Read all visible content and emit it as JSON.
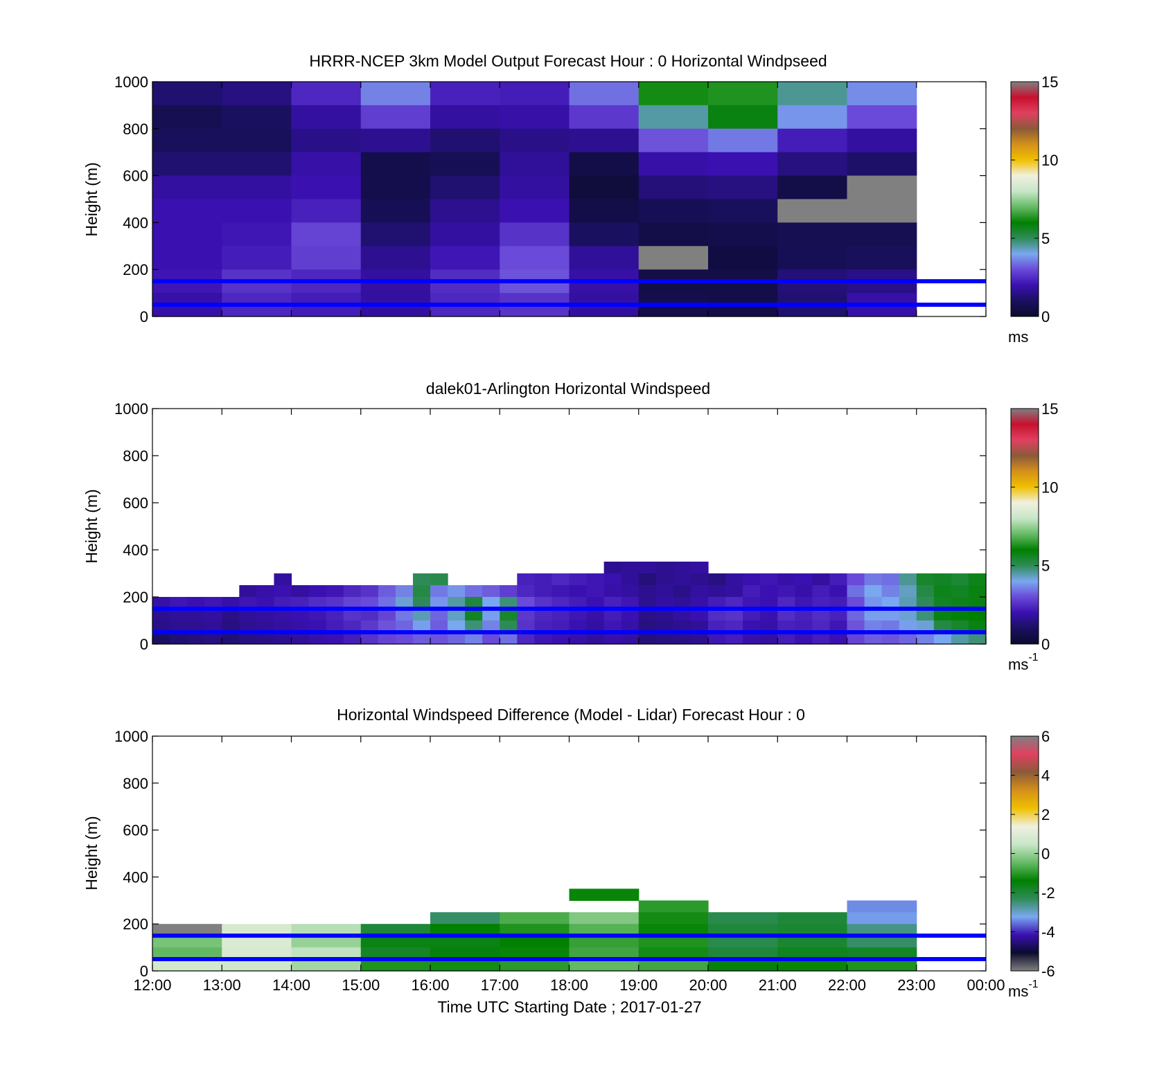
{
  "colors": {
    "speed_scale": [
      "#0b0b2e",
      "#1a1060",
      "#3a10b0",
      "#6a4ad8",
      "#7aa8f0",
      "#2e8b57",
      "#008000",
      "#66bb66",
      "#c8e6c8",
      "#f0f0e0",
      "#f0c000",
      "#d4901a",
      "#8b5a3a",
      "#e04060",
      "#c8102e",
      "#808080"
    ],
    "diff_scale": [
      "#808080",
      "#0b0b2e",
      "#3a10b0",
      "#7aa8f0",
      "#2e8b57",
      "#008000",
      "#66bb66",
      "#c8e6c8",
      "#f0f0e0",
      "#f0c000",
      "#d4901a",
      "#8b5a3a",
      "#e04060",
      "#808080"
    ],
    "reference_lines": "#0000ff"
  },
  "figure": {
    "xaxis": {
      "label": "Time UTC  Starting Date ; 2017-01-27",
      "ticks": [
        "12:00",
        "13:00",
        "14:00",
        "15:00",
        "16:00",
        "17:00",
        "18:00",
        "19:00",
        "20:00",
        "21:00",
        "22:00",
        "23:00",
        "00:00"
      ]
    }
  },
  "chart_data": [
    {
      "type": "heatmap",
      "title": "HRRR-NCEP 3km Model Output   Forecast Hour : 0 Horizontal Windpseed",
      "ylabel": "Height (m)",
      "ylim": [
        0,
        1000
      ],
      "yticks": [
        "0",
        "200",
        "400",
        "600",
        "800",
        "1000"
      ],
      "x_hours": [
        12,
        13,
        14,
        15,
        16,
        17,
        18,
        19,
        20,
        21,
        22
      ],
      "heights": [
        1000,
        900,
        800,
        700,
        600,
        500,
        400,
        300,
        200,
        100
      ],
      "values": [
        [
          1.2,
          1.4,
          2.4,
          3.6,
          2.3,
          2.2,
          3.4,
          6.2,
          6.3,
          4.6,
          3.7
        ],
        [
          0.7,
          1.0,
          1.8,
          2.8,
          1.8,
          1.9,
          2.7,
          4.5,
          5.8,
          3.8,
          3.0
        ],
        [
          0.9,
          0.9,
          1.5,
          1.6,
          1.2,
          1.5,
          1.6,
          3.1,
          3.5,
          2.2,
          1.8
        ],
        [
          1.2,
          1.2,
          1.9,
          0.6,
          0.8,
          1.7,
          0.5,
          1.9,
          2.0,
          1.4,
          1.1
        ],
        [
          1.8,
          1.8,
          2.0,
          0.6,
          1.2,
          1.8,
          0.3,
          1.3,
          1.4,
          0.5,
          15.0
        ],
        [
          2.0,
          2.0,
          2.3,
          0.8,
          1.6,
          2.0,
          0.5,
          0.8,
          0.9,
          15.0,
          15.0
        ],
        [
          2.0,
          2.1,
          2.9,
          1.2,
          1.8,
          2.6,
          1.0,
          0.5,
          0.6,
          0.7,
          0.7
        ],
        [
          2.0,
          2.2,
          2.8,
          1.6,
          2.1,
          3.0,
          1.7,
          15.0,
          0.4,
          0.8,
          0.9
        ],
        [
          2.1,
          2.6,
          2.4,
          1.8,
          2.5,
          3.1,
          1.9,
          0.5,
          0.5,
          1.3,
          1.5
        ],
        [
          1.9,
          2.4,
          2.2,
          1.8,
          2.4,
          2.6,
          1.8,
          0.6,
          0.5,
          1.2,
          1.9
        ]
      ],
      "reference_lines_m": [
        150,
        50
      ],
      "colorbar": {
        "min": 0,
        "max": 15,
        "ticks": [
          "0",
          "5",
          "10",
          "15"
        ],
        "unit": "ms"
      }
    },
    {
      "type": "heatmap",
      "title": "dalek01-Arlington  Horizontal Windspeed",
      "ylabel": "Height (m)",
      "ylim": [
        0,
        1000
      ],
      "yticks": [
        "0",
        "200",
        "400",
        "600",
        "800",
        "1000"
      ],
      "x_hours": [
        12,
        12.25,
        12.5,
        12.75,
        13,
        13.25,
        13.5,
        13.75,
        14,
        14.25,
        14.5,
        14.75,
        15,
        15.25,
        15.5,
        15.75,
        16,
        16.25,
        16.5,
        16.75,
        17,
        17.25,
        17.5,
        17.75,
        18,
        18.25,
        18.5,
        18.75,
        19,
        19.25,
        19.5,
        19.75,
        20,
        20.25,
        20.5,
        20.75,
        21,
        21.25,
        21.5,
        21.75,
        22,
        22.25,
        22.5,
        22.75,
        23,
        23.25,
        23.5,
        23.75
      ],
      "heights": [
        350,
        300,
        250,
        200,
        150,
        100,
        50
      ],
      "values": [
        [
          null,
          null,
          null,
          null,
          null,
          null,
          null,
          null,
          null,
          null,
          null,
          null,
          null,
          null,
          null,
          null,
          null,
          null,
          null,
          null,
          null,
          null,
          null,
          null,
          null,
          null,
          1.6,
          1.7,
          1.7,
          1.6,
          1.7,
          1.8,
          null,
          null,
          null,
          null,
          null,
          null,
          null,
          null,
          null,
          null,
          null,
          null,
          null,
          null,
          null,
          null
        ],
        [
          null,
          null,
          null,
          null,
          null,
          null,
          null,
          1.8,
          null,
          null,
          null,
          null,
          null,
          null,
          null,
          5.0,
          5.1,
          null,
          null,
          null,
          null,
          2.3,
          2.2,
          2.4,
          2.2,
          2.1,
          2.0,
          1.7,
          1.3,
          1.6,
          1.7,
          1.6,
          1.4,
          1.8,
          2.0,
          2.1,
          1.9,
          2.0,
          1.8,
          2.2,
          3.0,
          3.5,
          3.4,
          4.6,
          5.5,
          5.6,
          5.4,
          5.7
        ],
        [
          null,
          null,
          null,
          null,
          null,
          1.7,
          1.9,
          2.0,
          1.8,
          2.0,
          2.1,
          2.4,
          2.6,
          3.2,
          3.6,
          5.2,
          3.5,
          3.8,
          3.4,
          3.2,
          2.8,
          2.4,
          2.2,
          2.1,
          2.0,
          2.1,
          1.9,
          1.8,
          1.6,
          1.7,
          1.5,
          1.8,
          1.7,
          1.8,
          2.2,
          2.0,
          2.1,
          1.9,
          2.2,
          2.0,
          3.4,
          4.0,
          3.6,
          4.3,
          5.2,
          5.7,
          5.6,
          5.8
        ],
        [
          1.9,
          2.1,
          2.0,
          2.1,
          1.9,
          2.1,
          2.0,
          2.2,
          2.3,
          2.5,
          2.6,
          2.9,
          3.0,
          3.4,
          4.2,
          5.0,
          3.8,
          4.5,
          5.3,
          4.0,
          4.8,
          3.0,
          2.6,
          2.4,
          2.2,
          2.0,
          2.3,
          2.1,
          1.6,
          1.8,
          1.7,
          1.9,
          2.2,
          2.4,
          2.1,
          2.0,
          2.4,
          2.1,
          2.3,
          2.2,
          3.0,
          3.8,
          4.0,
          4.4,
          5.0,
          5.6,
          5.7,
          5.8
        ],
        [
          1.6,
          1.7,
          1.7,
          1.8,
          1.5,
          1.7,
          1.8,
          1.9,
          2.0,
          2.1,
          2.3,
          2.6,
          2.5,
          2.9,
          3.5,
          4.4,
          3.3,
          4.3,
          5.6,
          3.9,
          5.5,
          2.7,
          2.4,
          2.3,
          2.1,
          1.9,
          2.2,
          2.0,
          1.5,
          1.6,
          1.8,
          2.0,
          2.5,
          2.6,
          2.2,
          2.0,
          2.5,
          2.3,
          2.5,
          2.3,
          3.3,
          3.9,
          3.9,
          4.2,
          4.8,
          5.8,
          5.9,
          6.0
        ],
        [
          1.5,
          1.6,
          1.6,
          1.7,
          1.4,
          1.6,
          1.7,
          1.8,
          1.9,
          2.0,
          2.2,
          2.4,
          2.7,
          3.1,
          3.3,
          3.9,
          3.2,
          4.0,
          4.8,
          3.6,
          5.0,
          2.6,
          2.3,
          2.2,
          2.0,
          1.8,
          2.1,
          1.9,
          1.4,
          1.5,
          1.6,
          1.7,
          2.3,
          2.4,
          2.0,
          1.9,
          2.3,
          2.2,
          2.4,
          2.1,
          3.1,
          3.6,
          3.5,
          3.9,
          4.2,
          5.2,
          5.5,
          5.8
        ],
        [
          1.0,
          1.2,
          1.3,
          1.4,
          1.2,
          1.4,
          1.5,
          1.6,
          1.7,
          1.9,
          2.0,
          2.2,
          2.6,
          2.9,
          3.0,
          3.2,
          3.1,
          3.3,
          3.6,
          3.0,
          3.4,
          2.4,
          2.1,
          2.0,
          1.9,
          1.7,
          1.9,
          1.8,
          1.3,
          1.4,
          1.5,
          1.6,
          2.1,
          2.2,
          1.9,
          1.8,
          2.2,
          2.0,
          2.2,
          2.0,
          2.9,
          3.2,
          3.1,
          3.3,
          3.6,
          4.0,
          4.5,
          4.8
        ]
      ],
      "reference_lines_m": [
        150,
        50
      ],
      "colorbar": {
        "min": 0,
        "max": 15,
        "ticks": [
          "0",
          "5",
          "10",
          "15"
        ],
        "unit": "ms",
        "unit_exp": "-1"
      }
    },
    {
      "type": "heatmap",
      "title": "Horizontal Windspeed Difference (Model - Lidar) Forecast Hour : 0",
      "ylabel": "Height (m)",
      "ylim": [
        0,
        1000
      ],
      "yticks": [
        "0",
        "200",
        "400",
        "600",
        "800",
        "1000"
      ],
      "x_hours": [
        12,
        13,
        14,
        15,
        16,
        17,
        18,
        19,
        20,
        21,
        22
      ],
      "heights": [
        350,
        300,
        250,
        200,
        150,
        100,
        50
      ],
      "values": [
        [
          null,
          null,
          null,
          null,
          null,
          null,
          -1.3,
          null,
          null,
          null,
          null
        ],
        [
          null,
          null,
          null,
          null,
          null,
          null,
          null,
          -1.0,
          null,
          null,
          -3.4
        ],
        [
          null,
          null,
          null,
          null,
          -2.4,
          -0.7,
          -0.2,
          -1.2,
          -2.2,
          -2.0,
          -3.3
        ],
        [
          6.0,
          0.8,
          0.3,
          -2.0,
          -1.4,
          -1.1,
          -0.6,
          -1.3,
          -2.0,
          -1.9,
          -2.6
        ],
        [
          -0.3,
          0.9,
          0.0,
          -1.6,
          -1.6,
          -1.4,
          -0.9,
          -1.1,
          -2.2,
          -1.9,
          -2.4
        ],
        [
          -0.5,
          0.8,
          0.4,
          -1.8,
          -1.5,
          -1.3,
          -0.8,
          -1.2,
          -2.0,
          -1.7,
          -1.8
        ],
        [
          0.7,
          0.6,
          0.1,
          -1.1,
          -1.2,
          -1.0,
          -0.5,
          -0.8,
          -1.5,
          -1.3,
          -1.1
        ]
      ],
      "reference_lines_m": [
        150,
        50
      ],
      "colorbar": {
        "min": -6,
        "max": 6,
        "ticks": [
          "-6",
          "-4",
          "-2",
          "0",
          "2",
          "4",
          "6"
        ],
        "unit": "ms",
        "unit_exp": "-1"
      }
    }
  ]
}
